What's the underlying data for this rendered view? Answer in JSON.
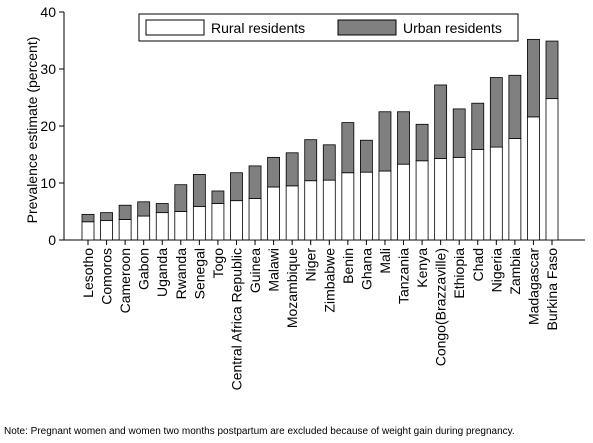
{
  "chart_data": {
    "type": "bar",
    "stacked": true,
    "ylabel": "Prevalence estimate (percent)",
    "ylim": [
      0,
      40
    ],
    "yticks": [
      0,
      10,
      20,
      30,
      40
    ],
    "grid": false,
    "legend_position": "top",
    "categories": [
      "Lesotho",
      "Comoros",
      "Cameroon",
      "Gabon",
      "Uganda",
      "Rwanda",
      "Senegal",
      "Togo",
      "Central Africa Republic",
      "Guinea",
      "Malawi",
      "Mozambique",
      "Niger",
      "Zimbabwe",
      "Benin",
      "Ghana",
      "Mali",
      "Tanzania",
      "Kenya",
      "Congo(Brazzaville)",
      "Ethiopia",
      "Chad",
      "Nigeria",
      "Zambia",
      "Madagascar",
      "Burkina Faso"
    ],
    "series": [
      {
        "name": "Rural residents",
        "color": "#ffffff",
        "values": [
          3.2,
          3.4,
          3.6,
          4.2,
          4.8,
          5.0,
          5.9,
          6.4,
          6.9,
          7.3,
          9.3,
          9.5,
          10.4,
          10.5,
          11.8,
          11.9,
          12.1,
          13.3,
          13.9,
          14.3,
          14.5,
          15.9,
          16.3,
          17.8,
          21.6,
          24.8
        ]
      },
      {
        "name": "Urban residents",
        "color": "#808080",
        "values": [
          1.3,
          1.4,
          2.5,
          2.5,
          1.6,
          4.7,
          5.6,
          2.2,
          4.9,
          5.7,
          5.2,
          5.8,
          7.2,
          6.2,
          8.8,
          5.6,
          10.4,
          9.2,
          6.4,
          12.9,
          8.5,
          8.1,
          12.2,
          11.1,
          13.6,
          10.1
        ]
      }
    ]
  },
  "note": "Note: Pregnant women and women two months postpartum are excluded because of weight gain during pregnancy."
}
